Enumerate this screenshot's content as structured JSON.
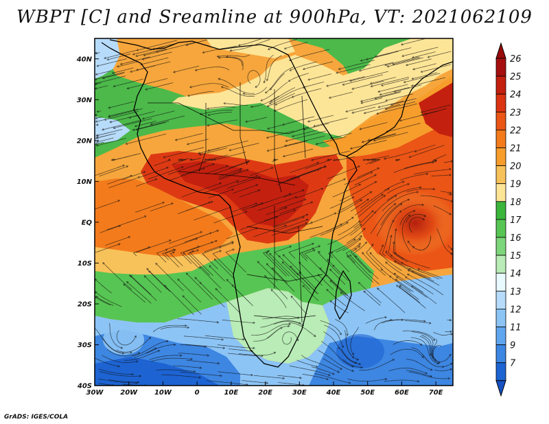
{
  "title": "WBPT [C] and Sreamline at 900hPa, VT: 2021062109",
  "credit": "GrADS: IGES/COLA",
  "map": {
    "lon_range": [
      -30,
      75
    ],
    "lat_range": [
      -40,
      45
    ],
    "lat_ticks": [
      {
        "value": 40,
        "label": "40N"
      },
      {
        "value": 30,
        "label": "30N"
      },
      {
        "value": 20,
        "label": "20N"
      },
      {
        "value": 10,
        "label": "10N"
      },
      {
        "value": 0,
        "label": "EQ"
      },
      {
        "value": -10,
        "label": "10S"
      },
      {
        "value": -20,
        "label": "20S"
      },
      {
        "value": -30,
        "label": "30S"
      },
      {
        "value": -40,
        "label": "40S"
      }
    ],
    "lon_ticks": [
      {
        "value": -30,
        "label": "30W"
      },
      {
        "value": -20,
        "label": "20W"
      },
      {
        "value": -10,
        "label": "10W"
      },
      {
        "value": 0,
        "label": "0"
      },
      {
        "value": 10,
        "label": "10E"
      },
      {
        "value": 20,
        "label": "20E"
      },
      {
        "value": 30,
        "label": "30E"
      },
      {
        "value": 40,
        "label": "40E"
      },
      {
        "value": 50,
        "label": "50E"
      },
      {
        "value": 60,
        "label": "60E"
      },
      {
        "value": 70,
        "label": "70E"
      }
    ]
  },
  "colorbar": {
    "labels": [
      "26",
      "25",
      "24",
      "23",
      "22",
      "21",
      "20",
      "19",
      "18",
      "17",
      "16",
      "15",
      "14",
      "13",
      "12",
      "11",
      "9",
      "7"
    ],
    "colors": [
      "#a50f0f",
      "#c4200f",
      "#dc3412",
      "#eb5516",
      "#f37b1c",
      "#f69d2c",
      "#f8c25a",
      "#fde597",
      "#3bb53b",
      "#57c553",
      "#7dd67a",
      "#b9ecb6",
      "#e8fafd",
      "#b7dcfb",
      "#8cc4f5",
      "#5fa6ee",
      "#3d86e2",
      "#1d63d2"
    ],
    "top_color": "#9a0a0a",
    "bottom_color": "#1751c4"
  }
}
